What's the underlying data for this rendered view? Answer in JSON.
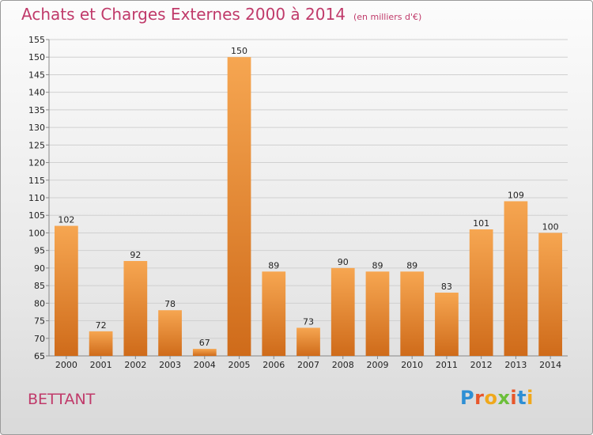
{
  "header": {
    "title": "Achats et Charges Externes 2000 à 2014",
    "subtitle": "(en milliers d'€)"
  },
  "footer": {
    "commune": "BETTANT",
    "logo_text": "Proxiti"
  },
  "colors": {
    "title": "#c03a6a",
    "bar_light": "#f6a651",
    "bar_dark": "#cf6b1a"
  },
  "chart_data": {
    "type": "bar",
    "title": "Achats et Charges Externes 2000 à 2014",
    "subtitle": "(en milliers d'€)",
    "categories": [
      "2000",
      "2001",
      "2002",
      "2003",
      "2004",
      "2005",
      "2006",
      "2007",
      "2008",
      "2009",
      "2010",
      "2011",
      "2012",
      "2013",
      "2014"
    ],
    "values": [
      102,
      72,
      92,
      78,
      67,
      150,
      89,
      73,
      90,
      89,
      89,
      83,
      101,
      109,
      100
    ],
    "ylim": [
      65,
      155
    ],
    "yticks": [
      65,
      70,
      75,
      80,
      85,
      90,
      95,
      100,
      105,
      110,
      115,
      120,
      125,
      130,
      135,
      140,
      145,
      150,
      155
    ],
    "grid": true
  }
}
